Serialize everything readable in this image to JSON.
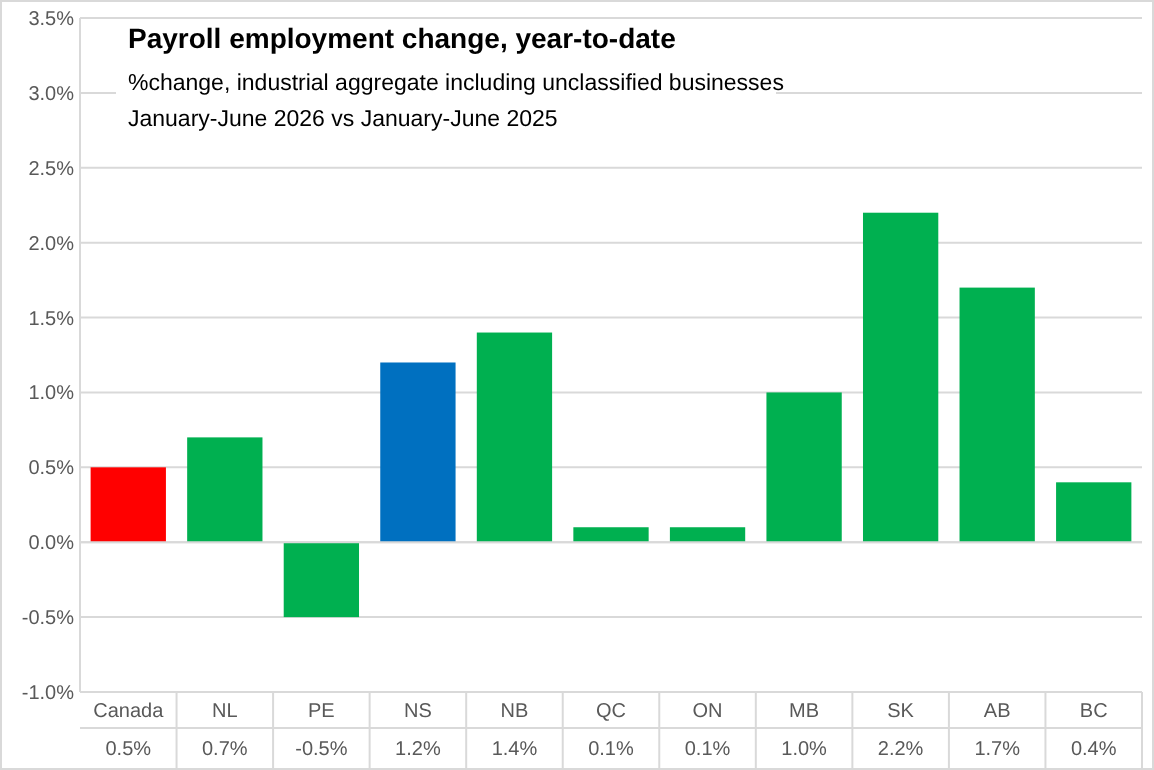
{
  "chart_data": {
    "type": "bar",
    "title": "Payroll employment change, year-to-date",
    "subtitle": "%change, industrial aggregate including unclassified businesses\nJanuary-June 2026 vs January-June 2025",
    "categories": [
      "Canada",
      "NL",
      "PE",
      "NS",
      "NB",
      "QC",
      "ON",
      "MB",
      "SK",
      "AB",
      "BC"
    ],
    "values": [
      0.5,
      0.7,
      -0.5,
      1.2,
      1.4,
      0.1,
      0.1,
      1.0,
      2.2,
      1.7,
      0.4
    ],
    "colors": [
      "#ff0000",
      "#00b050",
      "#00b050",
      "#0070c0",
      "#00b050",
      "#00b050",
      "#00b050",
      "#00b050",
      "#00b050",
      "#00b050",
      "#00b050"
    ],
    "value_labels": [
      "0.5%",
      "0.7%",
      "-0.5%",
      "1.2%",
      "1.4%",
      "0.1%",
      "0.1%",
      "1.0%",
      "2.2%",
      "1.7%",
      "0.4%"
    ],
    "ylim": [
      -1.0,
      3.5
    ],
    "yticks": [
      {
        "value": -1.0,
        "label": "-1.0%"
      },
      {
        "value": -0.5,
        "label": "-0.5%"
      },
      {
        "value": 0,
        "label": "0.0%"
      },
      {
        "value": 0.5,
        "label": "0.5%"
      },
      {
        "value": 1.0,
        "label": "1.0%"
      },
      {
        "value": 1.5,
        "label": "1.5%"
      },
      {
        "value": 2.0,
        "label": "2.0%"
      },
      {
        "value": 2.5,
        "label": "2.5%"
      },
      {
        "value": 3.0,
        "label": "3.0%"
      },
      {
        "value": 3.5,
        "label": "3.5%"
      }
    ],
    "grid": "y"
  }
}
